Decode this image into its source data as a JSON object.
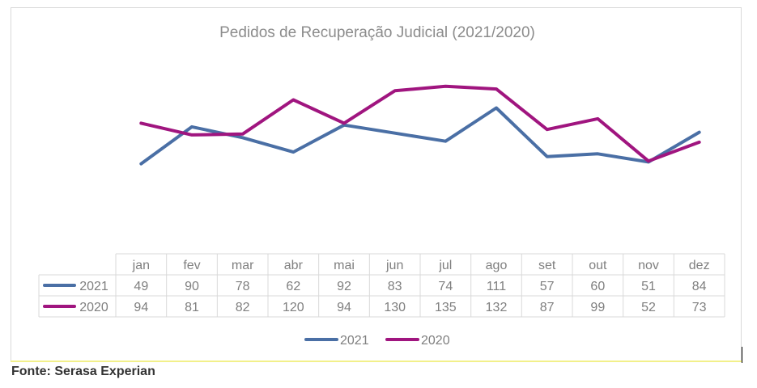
{
  "chart_data": {
    "type": "line",
    "title": "Pedidos de Recuperação Judicial (2021/2020)",
    "categories": [
      "jan",
      "fev",
      "mar",
      "abr",
      "mai",
      "jun",
      "jul",
      "ago",
      "set",
      "out",
      "nov",
      "dez"
    ],
    "series": [
      {
        "name": "2021",
        "color": "#4a6fa5",
        "values": [
          49,
          90,
          78,
          62,
          92,
          83,
          74,
          111,
          57,
          60,
          51,
          84
        ]
      },
      {
        "name": "2020",
        "color": "#a0157f",
        "values": [
          94,
          81,
          82,
          120,
          94,
          130,
          135,
          132,
          87,
          99,
          52,
          73
        ]
      }
    ],
    "ylim": [
      -50,
      150
    ],
    "grid": false,
    "data_table": true,
    "legend_position": "bottom"
  },
  "source": "Fonte: Serasa Experian"
}
